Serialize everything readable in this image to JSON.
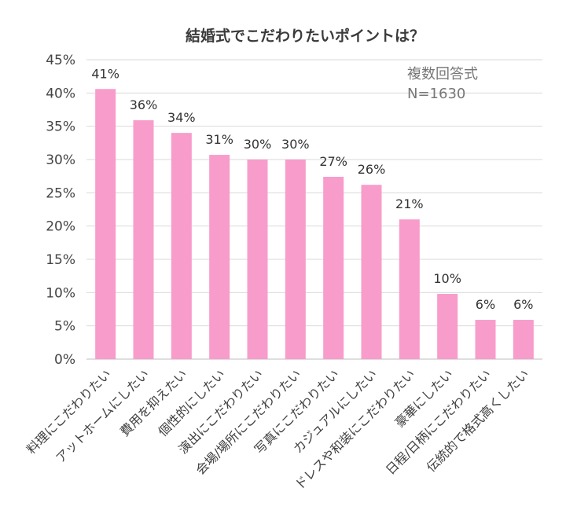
{
  "chart_data": {
    "type": "bar",
    "title": "結婚式でこだわりたいポイントは？",
    "annotation_lines": [
      "複数回答式",
      "N=1630"
    ],
    "categories": [
      "料理にこだわりたい",
      "アットホームにしたい",
      "費用を抑えたい",
      "個性的にしたい",
      "演出にこだわりたい",
      "会場/場所にこだわりたい",
      "写真にこだわりたい",
      "カジュアルにしたい",
      "ドレスや和装にこだわりたい",
      "豪華にしたい",
      "日程/日柄にこだわりたい",
      "伝統的で格式高くしたい"
    ],
    "values": [
      40.6,
      35.9,
      34.0,
      30.7,
      30.0,
      30.0,
      27.4,
      26.2,
      21.0,
      9.8,
      5.9,
      5.9
    ],
    "data_labels": [
      "41%",
      "36%",
      "34%",
      "31%",
      "30%",
      "30%",
      "27%",
      "26%",
      "21%",
      "10%",
      "6%",
      "6%"
    ],
    "ylim": [
      0,
      45
    ],
    "yticks": [
      0,
      5,
      10,
      15,
      20,
      25,
      30,
      35,
      40,
      45
    ],
    "ytick_labels": [
      "0%",
      "5%",
      "10%",
      "15%",
      "20%",
      "25%",
      "30%",
      "35%",
      "40%",
      "45%"
    ],
    "grid": true,
    "colors": {
      "bar": "#f89ccb",
      "grid": "#d9d9d9",
      "axis": "#bdbdbd"
    }
  }
}
